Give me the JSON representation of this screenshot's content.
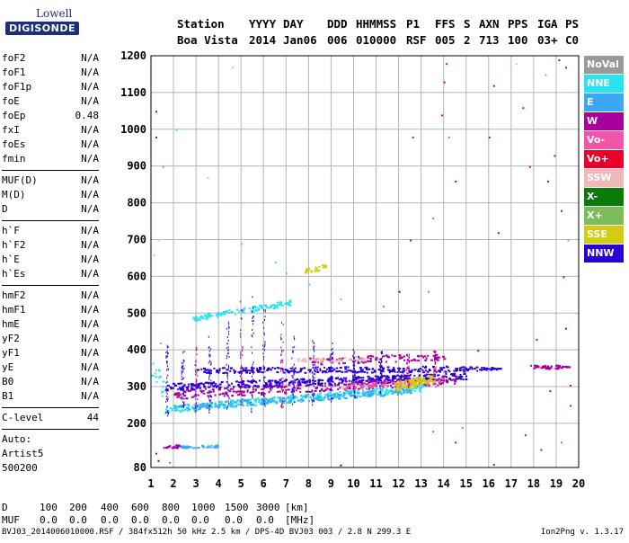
{
  "logo": {
    "line1": "Lowell",
    "line2": "DIGISONDE"
  },
  "header": {
    "labels": [
      "Station",
      "YYYY",
      "DAY",
      "DDD",
      "HHMMSS",
      "P1",
      "FFS",
      "S",
      "AXN",
      "PPS",
      "IGA",
      "PS"
    ],
    "values": [
      "Boa Vista",
      "2014",
      "Jan06",
      "006",
      "010000",
      "RSF",
      "005",
      "2",
      "713",
      "100",
      "03+",
      "C0"
    ]
  },
  "params": [
    [
      {
        "name": "foF2",
        "value": "N/A"
      },
      {
        "name": "foF1",
        "value": "N/A"
      },
      {
        "name": "foF1p",
        "value": "N/A"
      },
      {
        "name": "foE",
        "value": "N/A"
      },
      {
        "name": "foEp",
        "value": "0.48"
      },
      {
        "name": "fxI",
        "value": "N/A"
      },
      {
        "name": "foEs",
        "value": "N/A"
      },
      {
        "name": "fmin",
        "value": "N/A"
      }
    ],
    [
      {
        "name": "MUF(D)",
        "value": "N/A"
      },
      {
        "name": "M(D)",
        "value": "N/A"
      },
      {
        "name": "D",
        "value": "N/A"
      }
    ],
    [
      {
        "name": "h`F",
        "value": "N/A"
      },
      {
        "name": "h`F2",
        "value": "N/A"
      },
      {
        "name": "h`E",
        "value": "N/A"
      },
      {
        "name": "h`Es",
        "value": "N/A"
      }
    ],
    [
      {
        "name": "hmF2",
        "value": "N/A"
      },
      {
        "name": "hmF1",
        "value": "N/A"
      },
      {
        "name": "hmE",
        "value": "N/A"
      },
      {
        "name": "yF2",
        "value": "N/A"
      },
      {
        "name": "yF1",
        "value": "N/A"
      },
      {
        "name": "yE",
        "value": "N/A"
      },
      {
        "name": "B0",
        "value": "N/A"
      },
      {
        "name": "B1",
        "value": "N/A"
      }
    ],
    [
      {
        "name": "C-level",
        "value": "44"
      }
    ]
  ],
  "autoscaling": [
    "Auto:",
    "Artist5",
    "500200"
  ],
  "legend": [
    {
      "label": "NoVal",
      "color": "#9a9a9a"
    },
    {
      "label": "NNE",
      "color": "#28e4f0"
    },
    {
      "label": "E",
      "color": "#3aa8f4"
    },
    {
      "label": "W",
      "color": "#a8009c"
    },
    {
      "label": "Vo-",
      "color": "#f055a8"
    },
    {
      "label": "Vo+",
      "color": "#e8002a"
    },
    {
      "label": "SSW",
      "color": "#f2b8b8"
    },
    {
      "label": "X-",
      "color": "#0a7a0a"
    },
    {
      "label": "X+",
      "color": "#7cbc5a"
    },
    {
      "label": "SSE",
      "color": "#d4cc10"
    },
    {
      "label": "NNW",
      "color": "#2a00d8"
    }
  ],
  "bottom": {
    "d_label": "D",
    "d_values": [
      "100",
      "200",
      "400",
      "600",
      "800",
      "1000",
      "1500",
      "3000"
    ],
    "d_unit": "[km]",
    "muf_label": "MUF",
    "muf_values": [
      "0.0",
      "0.0",
      "0.0",
      "0.0",
      "0.0",
      "0.0",
      "0.0",
      "0.0"
    ],
    "muf_unit": "[MHz]"
  },
  "footer": "BVJ03_2014006010000.RSF / 384fx512h 50 kHz 2.5 km / DPS-4D BVJ03 003 / 2.8 N 299.3 E",
  "version": "Ion2Png v. 1.3.17",
  "chart_data": {
    "type": "scatter",
    "xlim": [
      1,
      20
    ],
    "ylim": [
      80,
      1200
    ],
    "x_ticks": [
      "1",
      "2",
      "3",
      "4",
      "5",
      "6",
      "7",
      "8",
      "9",
      "10",
      "11",
      "12",
      "13",
      "14",
      "15",
      "16",
      "17",
      "18",
      "19",
      "20"
    ],
    "y_ticks": [
      "80",
      "200",
      "300",
      "400",
      "500",
      "600",
      "700",
      "800",
      "900",
      "1000",
      "1100",
      "1200"
    ],
    "grid": true,
    "bands": [
      {
        "color": "#28e4f0",
        "x_start": 1.6,
        "x_end": 13.2,
        "h_start": 240,
        "h_end": 300,
        "spread": 10,
        "n": 380
      },
      {
        "color": "#3aa8f4",
        "x_start": 2.0,
        "x_end": 12.5,
        "h_start": 245,
        "h_end": 290,
        "spread": 8,
        "n": 200
      },
      {
        "color": "#2a00d8",
        "x_start": 1.6,
        "x_end": 15.0,
        "h_start": 300,
        "h_end": 330,
        "spread": 10,
        "n": 420
      },
      {
        "color": "#2a00d8",
        "x_start": 3.0,
        "x_end": 15.5,
        "h_start": 345,
        "h_end": 350,
        "spread": 8,
        "n": 260
      },
      {
        "color": "#a8009c",
        "x_start": 2.0,
        "x_end": 14.5,
        "h_start": 280,
        "h_end": 320,
        "spread": 12,
        "n": 240
      },
      {
        "color": "#a8009c",
        "x_start": 8.0,
        "x_end": 14.0,
        "h_start": 370,
        "h_end": 385,
        "spread": 10,
        "n": 90
      },
      {
        "color": "#f055a8",
        "x_start": 9.5,
        "x_end": 14.0,
        "h_start": 300,
        "h_end": 318,
        "spread": 8,
        "n": 80
      },
      {
        "color": "#28e4f0",
        "x_start": 2.8,
        "x_end": 7.2,
        "h_start": 488,
        "h_end": 530,
        "spread": 8,
        "n": 110
      },
      {
        "color": "#28e4f0",
        "x_start": 1.0,
        "x_end": 1.5,
        "h_start": 350,
        "h_end": 300,
        "spread": 30,
        "n": 15
      },
      {
        "color": "#f2b8b8",
        "x_start": 7.5,
        "x_end": 10.5,
        "h_start": 372,
        "h_end": 378,
        "spread": 6,
        "n": 45
      },
      {
        "color": "#d4cc10",
        "x_start": 11.8,
        "x_end": 13.5,
        "h_start": 300,
        "h_end": 325,
        "spread": 12,
        "n": 120
      },
      {
        "color": "#d4cc10",
        "x_start": 7.8,
        "x_end": 8.8,
        "h_start": 615,
        "h_end": 630,
        "spread": 6,
        "n": 25
      },
      {
        "color": "#3aa8f4",
        "x_start": 2.0,
        "x_end": 4.0,
        "h_start": 137,
        "h_end": 140,
        "spread": 3,
        "n": 40
      },
      {
        "color": "#a8009c",
        "x_start": 1.5,
        "x_end": 2.2,
        "h_start": 135,
        "h_end": 140,
        "spread": 4,
        "n": 25
      },
      {
        "color": "#a8009c",
        "x_start": 17.8,
        "x_end": 19.6,
        "h_start": 355,
        "h_end": 355,
        "spread": 5,
        "n": 40
      },
      {
        "color": "#2a00d8",
        "x_start": 15.5,
        "x_end": 16.5,
        "h_start": 350,
        "h_end": 352,
        "spread": 4,
        "n": 25
      }
    ],
    "columns": [
      {
        "x": 1.7,
        "h_from": 220,
        "h_to": 420,
        "color": "#2a00d8"
      },
      {
        "x": 2.4,
        "h_from": 230,
        "h_to": 400,
        "color": "#2a00d8"
      },
      {
        "x": 3.0,
        "h_from": 230,
        "h_to": 420,
        "color": "#a8009c"
      },
      {
        "x": 3.6,
        "h_from": 230,
        "h_to": 440,
        "color": "#2a00d8"
      },
      {
        "x": 4.4,
        "h_from": 240,
        "h_to": 480,
        "color": "#2a00d8"
      },
      {
        "x": 5.0,
        "h_from": 240,
        "h_to": 540,
        "color": "#a8009c"
      },
      {
        "x": 5.5,
        "h_from": 230,
        "h_to": 560,
        "color": "#2a00d8"
      },
      {
        "x": 6.0,
        "h_from": 240,
        "h_to": 520,
        "color": "#2a00d8"
      },
      {
        "x": 6.8,
        "h_from": 240,
        "h_to": 480,
        "color": "#a8009c"
      },
      {
        "x": 7.3,
        "h_from": 250,
        "h_to": 440,
        "color": "#2a00d8"
      },
      {
        "x": 8.2,
        "h_from": 250,
        "h_to": 430,
        "color": "#2a00d8"
      },
      {
        "x": 9.0,
        "h_from": 260,
        "h_to": 420,
        "color": "#2a00d8"
      },
      {
        "x": 10.0,
        "h_from": 270,
        "h_to": 410,
        "color": "#2a00d8"
      },
      {
        "x": 11.2,
        "h_from": 280,
        "h_to": 400,
        "color": "#2a00d8"
      },
      {
        "x": 12.4,
        "h_from": 290,
        "h_to": 400,
        "color": "#a8009c"
      },
      {
        "x": 13.6,
        "h_from": 300,
        "h_to": 400,
        "color": "#a8009c"
      }
    ],
    "sparse": [
      {
        "x": 14.1,
        "h": 1180,
        "color": "#a8009c"
      },
      {
        "x": 14.0,
        "h": 1130,
        "color": "#e8002a"
      },
      {
        "x": 14.2,
        "h": 980,
        "color": "#f055a8"
      },
      {
        "x": 13.9,
        "h": 1040,
        "color": "#e8002a"
      },
      {
        "x": 14.5,
        "h": 860,
        "color": "#a8009c"
      },
      {
        "x": 13.5,
        "h": 760,
        "color": "#f055a8"
      },
      {
        "x": 16.2,
        "h": 1120,
        "color": "#a8009c"
      },
      {
        "x": 16.0,
        "h": 980,
        "color": "#0a7a0a"
      },
      {
        "x": 16.4,
        "h": 720,
        "color": "#a8009c"
      },
      {
        "x": 17.2,
        "h": 1180,
        "color": "#f2b8b8"
      },
      {
        "x": 17.5,
        "h": 1060,
        "color": "#e8002a"
      },
      {
        "x": 17.8,
        "h": 900,
        "color": "#e8002a"
      },
      {
        "x": 18.5,
        "h": 1150,
        "color": "#7cbc5a"
      },
      {
        "x": 18.6,
        "h": 860,
        "color": "#a8009c"
      },
      {
        "x": 18.9,
        "h": 930,
        "color": "#0a7a0a"
      },
      {
        "x": 19.1,
        "h": 1190,
        "color": "#a8009c"
      },
      {
        "x": 19.4,
        "h": 1170,
        "color": "#0a7a0a"
      },
      {
        "x": 19.2,
        "h": 780,
        "color": "#0a7a0a"
      },
      {
        "x": 19.5,
        "h": 700,
        "color": "#7cbc5a"
      },
      {
        "x": 19.3,
        "h": 600,
        "color": "#a8009c"
      },
      {
        "x": 19.4,
        "h": 460,
        "color": "#a8009c"
      },
      {
        "x": 19.6,
        "h": 305,
        "color": "#e8002a"
      },
      {
        "x": 19.2,
        "h": 150,
        "color": "#f055a8"
      },
      {
        "x": 18.3,
        "h": 130,
        "color": "#0a7a0a"
      },
      {
        "x": 17.6,
        "h": 170,
        "color": "#0a7a0a"
      },
      {
        "x": 16.2,
        "h": 90,
        "color": "#0a7a0a"
      },
      {
        "x": 14.5,
        "h": 150,
        "color": "#a8009c"
      },
      {
        "x": 14.8,
        "h": 190,
        "color": "#f055a8"
      },
      {
        "x": 13.5,
        "h": 180,
        "color": "#f055a8"
      },
      {
        "x": 12.5,
        "h": 700,
        "color": "#a8009c"
      },
      {
        "x": 12.6,
        "h": 980,
        "color": "#0a7a0a"
      },
      {
        "x": 13.3,
        "h": 560,
        "color": "#f055a8"
      },
      {
        "x": 12.0,
        "h": 560,
        "color": "#2a00d8"
      },
      {
        "x": 11.3,
        "h": 520,
        "color": "#f055a8"
      },
      {
        "x": 9.4,
        "h": 540,
        "color": "#28e4f0"
      },
      {
        "x": 8.0,
        "h": 580,
        "color": "#28e4f0"
      },
      {
        "x": 7.0,
        "h": 610,
        "color": "#28e4f0"
      },
      {
        "x": 6.5,
        "h": 640,
        "color": "#28e4f0"
      },
      {
        "x": 1.2,
        "h": 1050,
        "color": "#a8009c"
      },
      {
        "x": 1.2,
        "h": 980,
        "color": "#a8009c"
      },
      {
        "x": 1.5,
        "h": 900,
        "color": "#f055a8"
      },
      {
        "x": 1.3,
        "h": 700,
        "color": "#f2b8b8"
      },
      {
        "x": 1.1,
        "h": 660,
        "color": "#f2b8b8"
      },
      {
        "x": 2.1,
        "h": 1000,
        "color": "#28e4f0"
      },
      {
        "x": 3.5,
        "h": 870,
        "color": "#f2b8b8"
      },
      {
        "x": 4.6,
        "h": 1170,
        "color": "#f2b8b8"
      },
      {
        "x": 1.4,
        "h": 420,
        "color": "#28e4f0"
      },
      {
        "x": 1.2,
        "h": 120,
        "color": "#a8009c"
      },
      {
        "x": 1.3,
        "h": 100,
        "color": "#2a00d8"
      },
      {
        "x": 1.8,
        "h": 95,
        "color": "#f055a8"
      },
      {
        "x": 9.4,
        "h": 88,
        "color": "#2a00d8"
      },
      {
        "x": 5.0,
        "h": 690,
        "color": "#28e4f0"
      },
      {
        "x": 15.5,
        "h": 400,
        "color": "#e8002a"
      },
      {
        "x": 18.1,
        "h": 430,
        "color": "#e8002a"
      },
      {
        "x": 19.6,
        "h": 250,
        "color": "#0a7a0a"
      },
      {
        "x": 18.7,
        "h": 290,
        "color": "#a8009c"
      }
    ]
  }
}
